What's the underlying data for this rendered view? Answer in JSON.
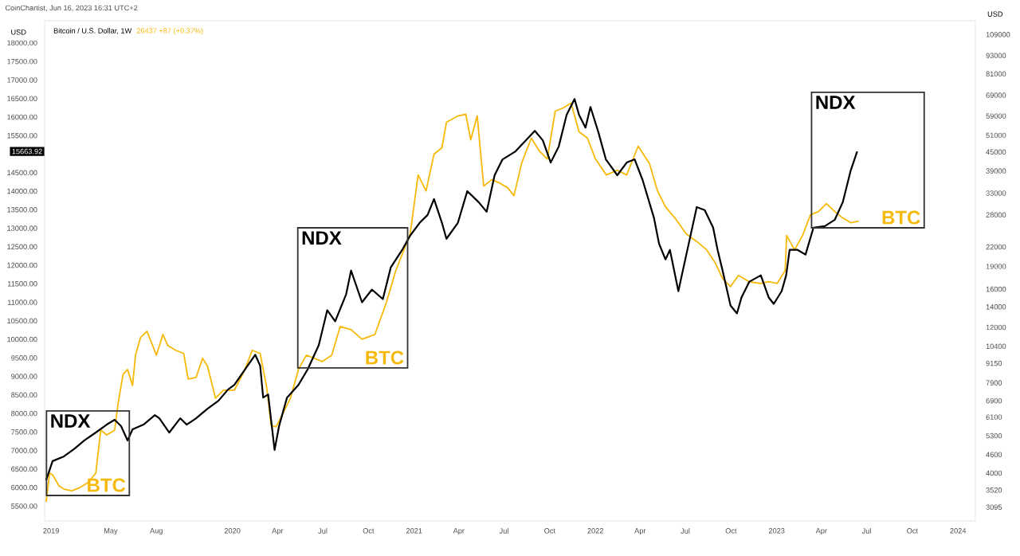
{
  "chart_data": {
    "type": "line",
    "title": "Bitcoin / U.S. Dollar, 1W",
    "subtitle": "CoinChartist, Jun 16, 2023 16:31 UTC+2",
    "ylabel": "USD",
    "y2label": "USD",
    "xlim": [
      "2018-12-19",
      "2024-02-05"
    ],
    "xticks": [
      {
        "value": "2019-01-01",
        "label": "2019"
      },
      {
        "value": "2019-05-01",
        "label": "May"
      },
      {
        "value": "2019-08-01",
        "label": "Aug"
      },
      {
        "value": "2020-01-01",
        "label": "2020"
      },
      {
        "value": "2020-04-01",
        "label": "Apr"
      },
      {
        "value": "2020-07-01",
        "label": "Jul"
      },
      {
        "value": "2020-10-01",
        "label": "Oct"
      },
      {
        "value": "2021-01-01",
        "label": "2021"
      },
      {
        "value": "2021-04-01",
        "label": "Apr"
      },
      {
        "value": "2021-07-01",
        "label": "Jul"
      },
      {
        "value": "2021-10-01",
        "label": "Oct"
      },
      {
        "value": "2022-01-01",
        "label": "2022"
      },
      {
        "value": "2022-04-01",
        "label": "Apr"
      },
      {
        "value": "2022-07-01",
        "label": "Jul"
      },
      {
        "value": "2022-10-01",
        "label": "Oct"
      },
      {
        "value": "2023-01-01",
        "label": "2023"
      },
      {
        "value": "2023-04-01",
        "label": "Apr"
      },
      {
        "value": "2023-07-01",
        "label": "Jul"
      },
      {
        "value": "2023-10-01",
        "label": "Oct"
      },
      {
        "value": "2024-01-01",
        "label": "2024"
      }
    ],
    "ylim": [
      5100,
      18600
    ],
    "yticks": [
      {
        "value": 5500,
        "label": "5500.00"
      },
      {
        "value": 6000,
        "label": "6000.00"
      },
      {
        "value": 6500,
        "label": "6500.00"
      },
      {
        "value": 7000,
        "label": "7000.00"
      },
      {
        "value": 7500,
        "label": "7500.00"
      },
      {
        "value": 8000,
        "label": "8000.00"
      },
      {
        "value": 8500,
        "label": "8500.00"
      },
      {
        "value": 9000,
        "label": "9000.00"
      },
      {
        "value": 9500,
        "label": "9500.00"
      },
      {
        "value": 10000,
        "label": "10000.00"
      },
      {
        "value": 10500,
        "label": "10500.00"
      },
      {
        "value": 11000,
        "label": "11000.00"
      },
      {
        "value": 11500,
        "label": "11500.00"
      },
      {
        "value": 12000,
        "label": "12000.00"
      },
      {
        "value": 12500,
        "label": "12500.00"
      },
      {
        "value": 13000,
        "label": "13000.00"
      },
      {
        "value": 13500,
        "label": "13500.00"
      },
      {
        "value": 14000,
        "label": "14000.00"
      },
      {
        "value": 14500,
        "label": "14500.00"
      },
      {
        "value": 15500,
        "label": "15500.00"
      },
      {
        "value": 16000,
        "label": "16000.00"
      },
      {
        "value": 16500,
        "label": "16500.00"
      },
      {
        "value": 17000,
        "label": "17000.00"
      },
      {
        "value": 17500,
        "label": "17500.00"
      },
      {
        "value": 18000,
        "label": "18000.00"
      }
    ],
    "log": "y2",
    "y2lim": [
      2790,
      121000
    ],
    "y2ticks": [
      3095,
      3520,
      4000,
      4600,
      5300,
      6100,
      6900,
      7900,
      9150,
      10400,
      12000,
      14000,
      16000,
      19000,
      22000,
      28000,
      33000,
      39000,
      45000,
      51000,
      59000,
      69000,
      81000,
      93000,
      109000
    ],
    "series": [
      {
        "color": "#000000",
        "x": [
          "2018-12-22",
          "2019-01-04",
          "2019-01-27",
          "2019-02-18",
          "2019-03-09",
          "2019-04-01",
          "2019-04-23",
          "2019-05-09",
          "2019-05-22",
          "2019-06-04",
          "2019-06-14",
          "2019-07-06",
          "2019-07-29",
          "2019-08-07",
          "2019-08-27",
          "2019-09-18",
          "2019-10-01",
          "2019-10-20",
          "2019-11-12",
          "2019-12-04",
          "2019-12-23",
          "2020-01-05",
          "2020-01-25",
          "2020-02-16",
          "2020-02-26",
          "2020-03-03",
          "2020-03-13",
          "2020-03-26",
          "2020-04-04",
          "2020-04-20",
          "2020-05-13",
          "2020-06-01",
          "2020-06-23",
          "2020-07-10",
          "2020-07-26",
          "2020-08-17",
          "2020-08-27",
          "2020-09-18",
          "2020-10-08",
          "2020-10-30",
          "2020-11-15",
          "2020-12-08",
          "2020-12-24",
          "2021-01-12",
          "2021-01-28",
          "2021-02-10",
          "2021-02-26",
          "2021-03-07",
          "2021-03-30",
          "2021-04-18",
          "2021-05-11",
          "2021-05-27",
          "2021-06-12",
          "2021-06-28",
          "2021-07-24",
          "2021-09-01",
          "2021-09-17",
          "2021-10-03",
          "2021-10-19",
          "2021-11-04",
          "2021-11-20",
          "2021-11-29",
          "2021-12-12",
          "2021-12-22",
          "2022-01-07",
          "2022-01-22",
          "2022-02-14",
          "2022-03-05",
          "2022-03-21",
          "2022-04-06",
          "2022-04-29",
          "2022-05-09",
          "2022-05-22",
          "2022-05-31",
          "2022-06-17",
          "2022-06-26",
          "2022-07-24",
          "2022-08-09",
          "2022-08-26",
          "2022-09-04",
          "2022-09-14",
          "2022-09-30",
          "2022-10-13",
          "2022-10-22",
          "2022-11-07",
          "2022-11-30",
          "2022-12-16",
          "2022-12-26",
          "2023-01-11",
          "2023-01-20",
          "2023-01-27",
          "2023-02-12",
          "2023-02-28",
          "2023-03-16",
          "2023-04-08",
          "2023-04-28",
          "2023-05-14",
          "2023-05-30",
          "2023-06-12"
        ],
        "values": [
          6200,
          6715,
          6843,
          7058,
          7272,
          7486,
          7700,
          7829,
          7658,
          7272,
          7572,
          7700,
          7958,
          7872,
          7486,
          7872,
          7700,
          7872,
          8129,
          8344,
          8644,
          8772,
          9158,
          9586,
          9286,
          8429,
          8515,
          7015,
          7658,
          8429,
          8772,
          9201,
          9844,
          10787,
          10487,
          11215,
          11858,
          11001,
          11344,
          11086,
          11944,
          12415,
          12801,
          13144,
          13358,
          13786,
          13144,
          12715,
          13144,
          14001,
          13701,
          13444,
          14430,
          14858,
          15073,
          15629,
          15372,
          14772,
          15201,
          16058,
          16487,
          16058,
          15715,
          16273,
          15587,
          14858,
          14430,
          14772,
          14858,
          14301,
          13272,
          12587,
          12158,
          12415,
          11301,
          11858,
          13572,
          13487,
          13015,
          12415,
          11858,
          10915,
          10701,
          11129,
          11558,
          11729,
          11129,
          10958,
          11301,
          11729,
          12415,
          12415,
          12287,
          13015,
          13058,
          13230,
          13701,
          14558,
          15073
        ]
      },
      {
        "color": "#f6b90a",
        "axis": "y2",
        "x": [
          "2018-12-22",
          "2018-12-29",
          "2019-01-04",
          "2019-01-17",
          "2019-01-27",
          "2019-02-12",
          "2019-02-28",
          "2019-03-16",
          "2019-04-01",
          "2019-04-11",
          "2019-04-23",
          "2019-05-09",
          "2019-05-16",
          "2019-05-26",
          "2019-06-04",
          "2019-06-14",
          "2019-06-20",
          "2019-06-30",
          "2019-07-13",
          "2019-07-22",
          "2019-08-01",
          "2019-08-14",
          "2019-08-24",
          "2019-09-09",
          "2019-09-25",
          "2019-10-04",
          "2019-10-20",
          "2019-11-02",
          "2019-11-12",
          "2019-11-28",
          "2019-12-14",
          "2020-01-05",
          "2020-01-25",
          "2020-02-10",
          "2020-02-26",
          "2020-03-10",
          "2020-03-19",
          "2020-03-29",
          "2020-04-11",
          "2020-04-27",
          "2020-05-13",
          "2020-05-29",
          "2020-06-14",
          "2020-06-30",
          "2020-07-19",
          "2020-08-05",
          "2020-08-27",
          "2020-09-18",
          "2020-10-14",
          "2020-11-06",
          "2020-11-25",
          "2020-12-24",
          "2021-01-09",
          "2021-01-25",
          "2021-02-10",
          "2021-02-26",
          "2021-03-07",
          "2021-03-30",
          "2021-04-15",
          "2021-04-25",
          "2021-05-08",
          "2021-05-21",
          "2021-06-06",
          "2021-06-22",
          "2021-07-08",
          "2021-07-21",
          "2021-08-06",
          "2021-08-25",
          "2021-09-10",
          "2021-09-26",
          "2021-10-12",
          "2021-10-28",
          "2021-11-13",
          "2021-11-29",
          "2021-12-16",
          "2022-01-01",
          "2022-01-23",
          "2022-02-14",
          "2022-03-05",
          "2022-03-28",
          "2022-04-20",
          "2022-05-06",
          "2022-05-22",
          "2022-06-10",
          "2022-07-03",
          "2022-07-25",
          "2022-08-13",
          "2022-08-30",
          "2022-09-14",
          "2022-09-30",
          "2022-10-16",
          "2022-11-07",
          "2022-11-30",
          "2022-12-16",
          "2023-01-02",
          "2023-01-18",
          "2023-01-21",
          "2023-02-06",
          "2023-02-22",
          "2023-03-10",
          "2023-03-26",
          "2023-04-11",
          "2023-04-28",
          "2023-05-14",
          "2023-05-30",
          "2023-06-15"
        ],
        "values": [
          3219,
          4000,
          3952,
          3633,
          3546,
          3502,
          3589,
          3722,
          4000,
          5532,
          5336,
          5532,
          6789,
          8426,
          8733,
          7746,
          9728,
          11107,
          11652,
          10715,
          9728,
          11369,
          10464,
          10094,
          9854,
          8131,
          8229,
          9505,
          8949,
          7041,
          7477,
          7477,
          8633,
          10094,
          9854,
          7652,
          5733,
          5668,
          6235,
          7041,
          8733,
          9728,
          9505,
          9276,
          9728,
          12077,
          11794,
          10976,
          11369,
          14475,
          18399,
          24263,
          37845,
          33561,
          44265,
          46445,
          56277,
          59045,
          59765,
          49312,
          59045,
          34793,
          36504,
          35632,
          34379,
          32373,
          41660,
          49911,
          45344,
          42674,
          61214,
          62697,
          64997,
          52375,
          49911,
          42674,
          37845,
          39229,
          37845,
          47012,
          41170,
          33561,
          29768,
          27370,
          24263,
          22846,
          21517,
          19544,
          17331,
          16317,
          17745,
          16917,
          16710,
          16917,
          16710,
          18399,
          23980,
          21517,
          23980,
          28035,
          28711,
          30487,
          28711,
          27370,
          26400,
          26705
        ]
      }
    ],
    "annotations": [
      "NDX",
      "BTC",
      "NDX",
      "BTC",
      "NDX",
      "BTC",
      "15663.92",
      "26437 +87 (+0.37%)"
    ]
  }
}
